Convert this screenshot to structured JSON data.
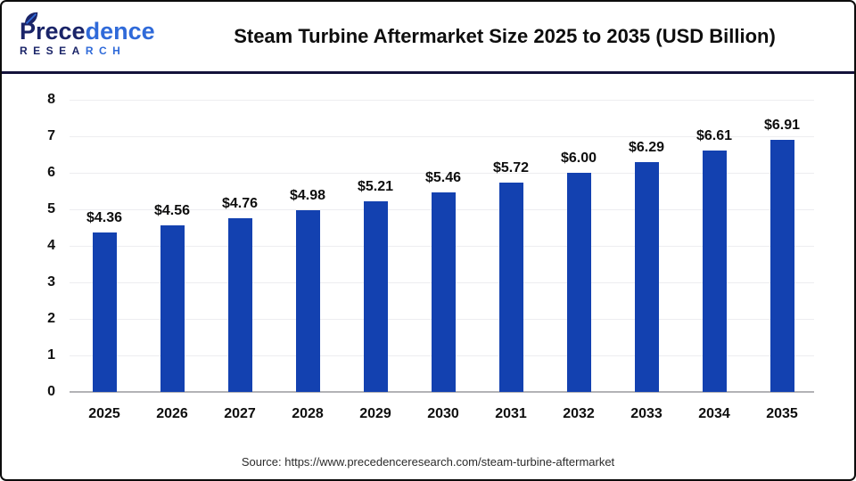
{
  "header": {
    "logo": {
      "name_part1": "Prece",
      "name_part2": "dence",
      "subtitle_part1": "RESEA",
      "subtitle_part2": "RCH"
    },
    "title": "Steam Turbine Aftermarket Size 2025 to 2035 (USD Billion)"
  },
  "chart_data": {
    "type": "bar",
    "title": "Steam Turbine Aftermarket Size 2025 to 2035 (USD Billion)",
    "categories": [
      "2025",
      "2026",
      "2027",
      "2028",
      "2029",
      "2030",
      "2031",
      "2032",
      "2033",
      "2034",
      "2035"
    ],
    "values": [
      4.36,
      4.56,
      4.76,
      4.98,
      5.21,
      5.46,
      5.72,
      6.0,
      6.29,
      6.61,
      6.91
    ],
    "value_labels": [
      "$4.36",
      "$4.56",
      "$4.76",
      "$4.98",
      "$5.21",
      "$5.46",
      "$5.72",
      "$6.00",
      "$6.29",
      "$6.61",
      "$6.91"
    ],
    "xlabel": "",
    "ylabel": "",
    "ylim": [
      0,
      8
    ],
    "yticks": [
      0,
      1,
      2,
      3,
      4,
      5,
      6,
      7,
      8
    ],
    "grid": "horizontal",
    "legend": "none",
    "bar_color": "#1341b0"
  },
  "footer": {
    "source": "Source: https://www.precedenceresearch.com/steam-turbine-aftermarket"
  },
  "colors": {
    "bar": "#1341b0",
    "divider": "#14123a",
    "gridline": "#ededf0",
    "axis_line": "#b2b2b6",
    "logo_dark": "#1a2468",
    "logo_blue": "#2f6ad9",
    "frame_border": "#0c0c0c"
  }
}
